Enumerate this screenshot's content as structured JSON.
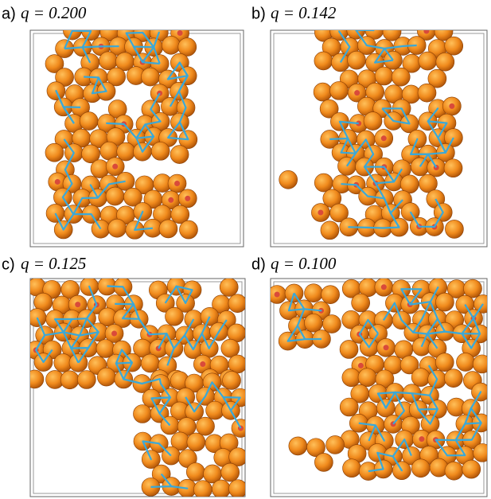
{
  "panels": [
    {
      "label": "a)",
      "caption": "q = 0.200"
    },
    {
      "label": "b)",
      "caption": "q = 0.142"
    },
    {
      "label": "c)",
      "caption": "q = 0.125"
    },
    {
      "label": "d)",
      "caption": "q = 0.100"
    }
  ]
}
